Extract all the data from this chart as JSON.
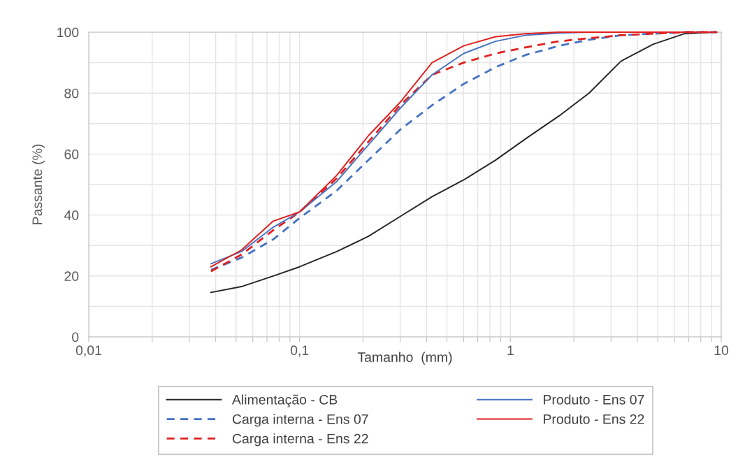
{
  "chart_data": {
    "type": "line",
    "xlabel": "Tamanho  (mm)",
    "ylabel": "Passante (%)",
    "log": "x",
    "xlim": [
      0.01,
      10
    ],
    "xticks": [
      {
        "value": 0.01,
        "label": "0,01"
      },
      {
        "value": 0.02,
        "label": null
      },
      {
        "value": 0.03,
        "label": null
      },
      {
        "value": 0.04,
        "label": null
      },
      {
        "value": 0.05,
        "label": null
      },
      {
        "value": 0.06,
        "label": null
      },
      {
        "value": 0.07,
        "label": null
      },
      {
        "value": 0.08,
        "label": null
      },
      {
        "value": 0.09,
        "label": null
      },
      {
        "value": 0.1,
        "label": "0,1"
      },
      {
        "value": 0.2,
        "label": null
      },
      {
        "value": 0.3,
        "label": null
      },
      {
        "value": 0.4,
        "label": null
      },
      {
        "value": 0.5,
        "label": null
      },
      {
        "value": 0.6,
        "label": null
      },
      {
        "value": 0.7,
        "label": null
      },
      {
        "value": 0.8,
        "label": null
      },
      {
        "value": 0.9,
        "label": null
      },
      {
        "value": 1,
        "label": "1"
      },
      {
        "value": 2,
        "label": null
      },
      {
        "value": 3,
        "label": null
      },
      {
        "value": 4,
        "label": null
      },
      {
        "value": 5,
        "label": null
      },
      {
        "value": 6,
        "label": null
      },
      {
        "value": 7,
        "label": null
      },
      {
        "value": 8,
        "label": null
      },
      {
        "value": 9,
        "label": null
      },
      {
        "value": 10,
        "label": "10"
      }
    ],
    "ylim": [
      0,
      100
    ],
    "yticks": [
      0,
      {
        "value": 10,
        "label": null
      },
      20,
      {
        "value": 30,
        "label": null
      },
      40,
      {
        "value": 50,
        "label": null
      },
      60,
      {
        "value": 70,
        "label": null
      },
      80,
      {
        "value": 90,
        "label": null
      },
      100
    ],
    "grid": true,
    "legend": "bottom",
    "marker": "none",
    "x": [
      0.038,
      0.053,
      0.075,
      0.1,
      0.15,
      0.212,
      0.3,
      0.425,
      0.6,
      0.85,
      1.18,
      1.7,
      2.36,
      3.35,
      4.75,
      6.7,
      9.5
    ],
    "series": [
      {
        "name": "Alimentação - CB",
        "color": "#262626",
        "line_style": "solid",
        "values": [
          14.6,
          16.5,
          20,
          23,
          28,
          33,
          39.5,
          46,
          51.5,
          58,
          65,
          72.5,
          80,
          90.5,
          96,
          99.5,
          100
        ]
      },
      {
        "name": "Carga interna - Ens 07",
        "color": "#4472c4",
        "line_style": "dashed",
        "values": [
          22,
          26,
          32,
          39,
          48,
          58,
          68,
          76,
          83,
          88.5,
          92.5,
          95.5,
          97.5,
          99,
          99.5,
          100,
          100
        ]
      },
      {
        "name": "Carga interna - Ens 22",
        "color": "#e0201e",
        "line_style": "dashed",
        "values": [
          21.5,
          27,
          35,
          41,
          52,
          64,
          76,
          86,
          90,
          93,
          95,
          97,
          98,
          99,
          99.5,
          100,
          100
        ]
      },
      {
        "name": "Produto - Ens 07",
        "color": "#4472c4",
        "line_style": "solid",
        "values": [
          24,
          28,
          36,
          41,
          51,
          63,
          75,
          86,
          93,
          97,
          99,
          99.7,
          100,
          100,
          100,
          100,
          100
        ]
      },
      {
        "name": "Produto - Ens 22",
        "color": "#e0201e",
        "line_style": "solid",
        "values": [
          23,
          28.5,
          38,
          41,
          53,
          66,
          77,
          90,
          95.5,
          98.5,
          99.5,
          100,
          100,
          100,
          100,
          100,
          100
        ]
      }
    ]
  }
}
